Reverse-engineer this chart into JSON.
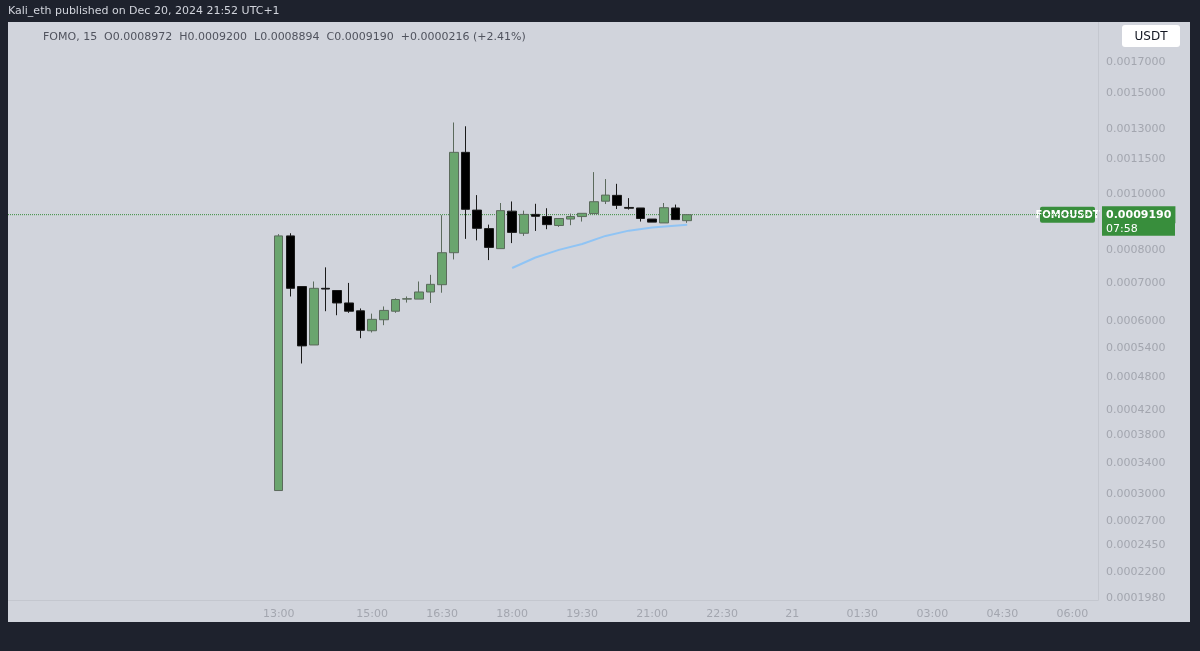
{
  "chart_data": {
    "type": "candlestick",
    "title": "Kali_eth published on Dec 20, 2024 21:52 UTC+1",
    "subtitle": "FOMO, 15  O0.0008972  H0.0009200  L0.0008894  C0.0009190  +0.0000216 (+2.41%)",
    "x": [
      "2024-12-20T13:00",
      "2024-12-20T13:15",
      "2024-12-20T13:30",
      "2024-12-20T13:45",
      "2024-12-20T14:00",
      "2024-12-20T14:15",
      "2024-12-20T14:30",
      "2024-12-20T14:45",
      "2024-12-20T15:00",
      "2024-12-20T15:15",
      "2024-12-20T15:30",
      "2024-12-20T15:45",
      "2024-12-20T16:00",
      "2024-12-20T16:15",
      "2024-12-20T16:30",
      "2024-12-20T16:45",
      "2024-12-20T17:00",
      "2024-12-20T17:15",
      "2024-12-20T17:30",
      "2024-12-20T17:45",
      "2024-12-20T18:00",
      "2024-12-20T18:15",
      "2024-12-20T18:30",
      "2024-12-20T18:45",
      "2024-12-20T19:00",
      "2024-12-20T19:15",
      "2024-12-20T19:30",
      "2024-12-20T19:45",
      "2024-12-20T20:00",
      "2024-12-20T20:15",
      "2024-12-20T20:30",
      "2024-12-20T20:45",
      "2024-12-20T21:00",
      "2024-12-20T21:15",
      "2024-12-20T21:30",
      "2024-12-20T21:45"
    ],
    "ohlc": [
      [
        0.000304,
        0.00085,
        0.000304,
        0.000844
      ],
      [
        0.000844,
        0.000853,
        0.000662,
        0.000684
      ],
      [
        0.000689,
        0.000689,
        0.000506,
        0.000543
      ],
      [
        0.000545,
        0.000703,
        0.000545,
        0.000684
      ],
      [
        0.000684,
        0.000744,
        0.000624,
        0.000682
      ],
      [
        0.000678,
        0.000678,
        0.000614,
        0.000645
      ],
      [
        0.000645,
        0.000699,
        0.00062,
        0.000624
      ],
      [
        0.000625,
        0.000631,
        0.00056,
        0.000578
      ],
      [
        0.000577,
        0.000618,
        0.000573,
        0.000604
      ],
      [
        0.000603,
        0.000636,
        0.00059,
        0.000626
      ],
      [
        0.000624,
        0.000657,
        0.00062,
        0.000654
      ],
      [
        0.000655,
        0.000662,
        0.000646,
        0.000656
      ],
      [
        0.000655,
        0.000703,
        0.000655,
        0.000674
      ],
      [
        0.000674,
        0.000722,
        0.000645,
        0.000695
      ],
      [
        0.000694,
        0.000917,
        0.000672,
        0.000789
      ],
      [
        0.000789,
        0.00133,
        0.000768,
        0.00118
      ],
      [
        0.00118,
        0.00131,
        0.000834,
        0.000939
      ],
      [
        0.000936,
        0.000994,
        0.000829,
        0.00087
      ],
      [
        0.000869,
        0.000883,
        0.000766,
        0.000806
      ],
      [
        0.000802,
        0.000963,
        0.000802,
        0.000934
      ],
      [
        0.000932,
        0.000969,
        0.00082,
        0.000856
      ],
      [
        0.000853,
        0.000934,
        0.000844,
        0.00092
      ],
      [
        0.00092,
        0.00096,
        0.000861,
        0.000913
      ],
      [
        0.000912,
        0.000943,
        0.000867,
        0.000883
      ],
      [
        0.00088,
        0.000905,
        0.000875,
        0.000905
      ],
      [
        0.000903,
        0.000923,
        0.000881,
        0.000912
      ],
      [
        0.000912,
        0.000924,
        0.000894,
        0.000924
      ],
      [
        0.000923,
        0.00109,
        0.000923,
        0.000968
      ],
      [
        0.00097,
        0.00106,
        0.000959,
        0.000994
      ],
      [
        0.000993,
        0.00104,
        0.00094,
        0.000954
      ],
      [
        0.000946,
        0.000982,
        0.000938,
        0.000943
      ],
      [
        0.000944,
        0.000944,
        0.000894,
        0.000905
      ],
      [
        0.000903,
        0.000903,
        0.000892,
        0.000892
      ],
      [
        0.000889,
        0.000963,
        0.000889,
        0.000945
      ],
      [
        0.000944,
        0.000957,
        0.000901,
        0.000901
      ],
      [
        0.0008972,
        0.00092,
        0.0008894,
        0.000919
      ]
    ],
    "series": [
      {
        "type": "line",
        "color": "#90c4f4",
        "x": [
          "2024-12-20T18:00",
          "2024-12-20T18:30",
          "2024-12-20T19:00",
          "2024-12-20T19:30",
          "2024-12-20T20:00",
          "2024-12-20T20:30",
          "2024-12-20T21:00",
          "2024-12-20T21:45"
        ],
        "values": [
          0.000742,
          0.000774,
          0.000798,
          0.000817,
          0.000844,
          0.000862,
          0.000873,
          0.000883
        ]
      }
    ],
    "marker": "none",
    "log": "y",
    "xlim": [
      "2024-12-20T07:12",
      "2024-12-21T06:33"
    ],
    "xticks": [
      {
        "value": "2024-12-20T13:00",
        "label": "13:00"
      },
      {
        "value": "2024-12-20T15:00",
        "label": "15:00"
      },
      {
        "value": "2024-12-20T16:30",
        "label": "16:30"
      },
      {
        "value": "2024-12-20T18:00",
        "label": "18:00"
      },
      {
        "value": "2024-12-20T19:30",
        "label": "19:30"
      },
      {
        "value": "2024-12-20T21:00",
        "label": "21:00"
      },
      {
        "value": "2024-12-20T22:30",
        "label": "22:30"
      },
      {
        "value": "2024-12-21T00:00",
        "label": "21"
      },
      {
        "value": "2024-12-21T01:30",
        "label": "01:30"
      },
      {
        "value": "2024-12-21T03:00",
        "label": "03:00"
      },
      {
        "value": "2024-12-21T04:30",
        "label": "04:30"
      },
      {
        "value": "2024-12-21T06:00",
        "label": "06:00"
      }
    ],
    "ylim": [
      0.000196,
      0.00199
    ],
    "yticks": [
      {
        "value": 0.0017,
        "label": "0.0017000"
      },
      {
        "value": 0.0015,
        "label": "0.0015000"
      },
      {
        "value": 0.0013,
        "label": "0.0013000"
      },
      {
        "value": 0.00115,
        "label": "0.0011500"
      },
      {
        "value": 0.001,
        "label": "0.0010000"
      },
      {
        "value": 0.0008,
        "label": "0.0008000"
      },
      {
        "value": 0.0007,
        "label": "0.0007000"
      },
      {
        "value": 0.0006,
        "label": "0.0006000"
      },
      {
        "value": 0.00054,
        "label": "0.0005400"
      },
      {
        "value": 0.00048,
        "label": "0.0004800"
      },
      {
        "value": 0.00042,
        "label": "0.0004200"
      },
      {
        "value": 0.00038,
        "label": "0.0003800"
      },
      {
        "value": 0.00034,
        "label": "0.0003400"
      },
      {
        "value": 0.0003,
        "label": "0.0003000"
      },
      {
        "value": 0.00027,
        "label": "0.0002700"
      },
      {
        "value": 0.000245,
        "label": "0.0002450"
      },
      {
        "value": 0.00022,
        "label": "0.0002200"
      },
      {
        "value": 0.000198,
        "label": "0.0001980"
      }
    ],
    "ref_lines": [
      {
        "axis": "y",
        "value": 0.000919,
        "label": "0.0009190",
        "color": "#388e3c",
        "line_style": "dotted"
      }
    ],
    "annotations": [
      "USDT",
      "07:58",
      "FOMOUSDT"
    ],
    "grid": false
  }
}
